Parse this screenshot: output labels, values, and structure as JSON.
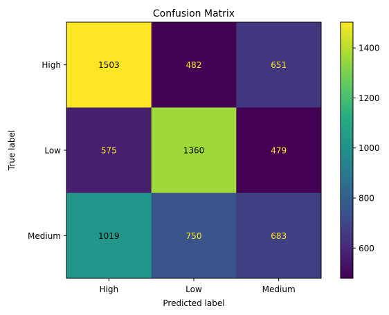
{
  "chart_data": {
    "type": "heatmap",
    "title": "Confusion Matrix",
    "xlabel": "Predicted label",
    "ylabel": "True label",
    "x_categories": [
      "High",
      "Low",
      "Medium"
    ],
    "y_categories": [
      "High",
      "Low",
      "Medium"
    ],
    "values": [
      [
        1503,
        482,
        651
      ],
      [
        575,
        1360,
        479
      ],
      [
        1019,
        750,
        683
      ]
    ],
    "colormap": "viridis",
    "color_range": [
      479,
      1503
    ],
    "colorbar_ticks": [
      600,
      800,
      1000,
      1200,
      1400
    ],
    "grid": false
  }
}
